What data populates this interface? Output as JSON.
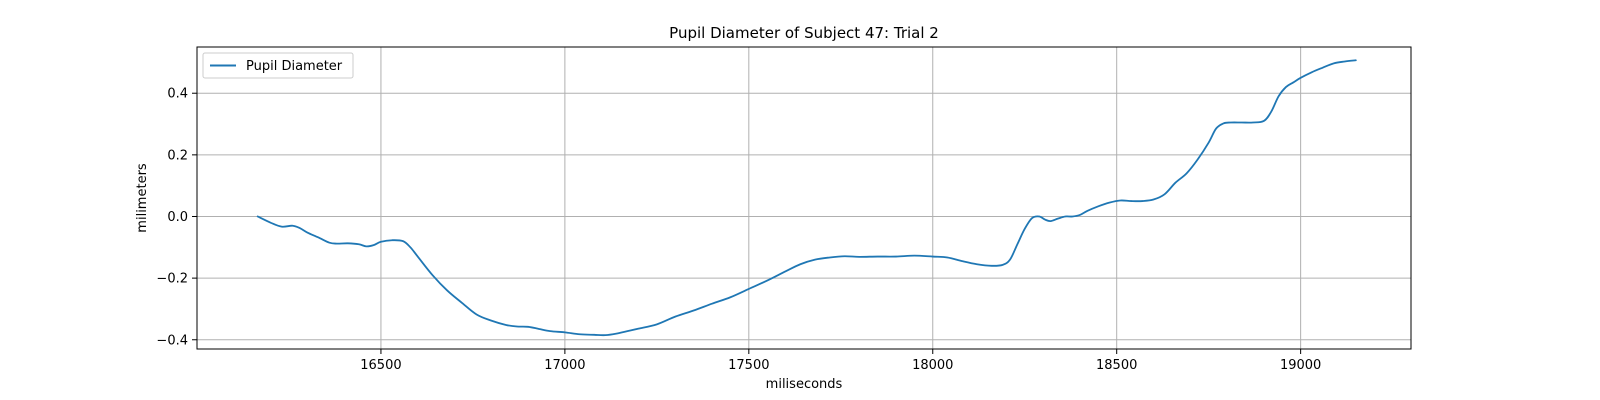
{
  "chart_data": {
    "type": "line",
    "title": "Pupil Diameter of Subject 47: Trial 2",
    "xlabel": "miliseconds",
    "ylabel": "milimeters",
    "xlim": [
      16000,
      19300
    ],
    "ylim": [
      -0.43,
      0.55
    ],
    "xticks": [
      16500,
      17000,
      17500,
      18000,
      18500,
      19000
    ],
    "yticks": [
      -0.4,
      -0.2,
      0.0,
      0.2,
      0.4
    ],
    "xtick_labels": [
      "16500",
      "17000",
      "17500",
      "18000",
      "18500",
      "19000"
    ],
    "ytick_labels": [
      "−0.4",
      "−0.2",
      "0.0",
      "0.2",
      "0.4"
    ],
    "grid": true,
    "legend_position": "upper-left",
    "series": [
      {
        "name": "Pupil Diameter",
        "color": "#1f77b4",
        "x": [
          16165,
          16200,
          16230,
          16260,
          16280,
          16300,
          16330,
          16360,
          16380,
          16410,
          16440,
          16460,
          16480,
          16500,
          16530,
          16560,
          16580,
          16600,
          16640,
          16680,
          16720,
          16760,
          16800,
          16840,
          16870,
          16900,
          16930,
          16960,
          17000,
          17040,
          17080,
          17110,
          17140,
          17170,
          17200,
          17250,
          17300,
          17350,
          17400,
          17450,
          17500,
          17550,
          17600,
          17640,
          17680,
          17720,
          17760,
          17800,
          17850,
          17900,
          17950,
          18000,
          18040,
          18080,
          18120,
          18160,
          18190,
          18210,
          18230,
          18250,
          18270,
          18290,
          18305,
          18320,
          18340,
          18360,
          18380,
          18400,
          18420,
          18450,
          18480,
          18510,
          18540,
          18570,
          18600,
          18630,
          18660,
          18690,
          18720,
          18750,
          18770,
          18790,
          18810,
          18840,
          18870,
          18900,
          18920,
          18940,
          18960,
          18980,
          19000,
          19030,
          19060,
          19090,
          19120,
          19150
        ],
        "y": [
          0.0,
          -0.02,
          -0.033,
          -0.03,
          -0.038,
          -0.052,
          -0.068,
          -0.085,
          -0.088,
          -0.087,
          -0.09,
          -0.097,
          -0.093,
          -0.082,
          -0.077,
          -0.08,
          -0.1,
          -0.13,
          -0.19,
          -0.24,
          -0.28,
          -0.318,
          -0.338,
          -0.352,
          -0.357,
          -0.358,
          -0.365,
          -0.372,
          -0.376,
          -0.382,
          -0.384,
          -0.385,
          -0.38,
          -0.372,
          -0.364,
          -0.35,
          -0.325,
          -0.305,
          -0.283,
          -0.262,
          -0.235,
          -0.208,
          -0.178,
          -0.155,
          -0.14,
          -0.133,
          -0.129,
          -0.131,
          -0.13,
          -0.13,
          -0.127,
          -0.13,
          -0.133,
          -0.145,
          -0.155,
          -0.16,
          -0.157,
          -0.14,
          -0.09,
          -0.04,
          -0.005,
          0.0,
          -0.01,
          -0.015,
          -0.007,
          0.0,
          0.0,
          0.005,
          0.018,
          0.033,
          0.045,
          0.052,
          0.05,
          0.05,
          0.055,
          0.072,
          0.11,
          0.14,
          0.185,
          0.24,
          0.285,
          0.302,
          0.305,
          0.305,
          0.305,
          0.31,
          0.34,
          0.39,
          0.42,
          0.435,
          0.45,
          0.468,
          0.483,
          0.497,
          0.503,
          0.507
        ]
      }
    ]
  }
}
